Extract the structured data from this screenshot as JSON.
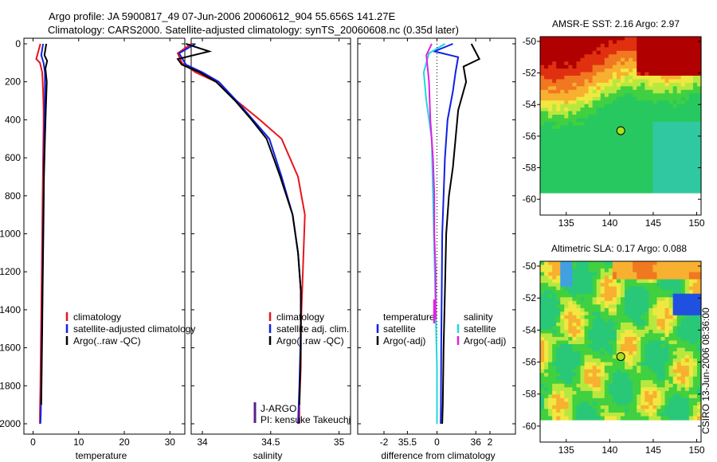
{
  "title": {
    "line1": "Argo profile: JA 5900817_49 07-Jun-2006 20060612_904 55.656S 141.27E",
    "line2": "Climatology: CARS2000. Satellite-adjusted climatology: synTS_20060608.nc (0.35d later)"
  },
  "side_label": "CSIRO 13-Jun-2006 08:36:00",
  "colors": {
    "climatology": "#e8141c",
    "satellite": "#1020e0",
    "argo": "#000000",
    "salinity_satellite": "#20d8e0",
    "salinity_argo": "#e020e0",
    "marker": "#a8e020"
  },
  "chart_data": [
    {
      "type": "line",
      "xlabel": "temperature",
      "xticks": [
        "0",
        "10",
        "20",
        "30"
      ],
      "yticks": [
        "0",
        "200",
        "400",
        "600",
        "800",
        "1000",
        "1200",
        "1400",
        "1600",
        "1800",
        "2000"
      ],
      "xlim": [
        -2,
        32
      ],
      "ylim": [
        2050,
        -10
      ],
      "legend": [
        "climatology",
        "satellite-adjusted climatology",
        "Argo(..raw -QC)"
      ],
      "series": [
        {
          "name": "climatology",
          "color": "#e8141c",
          "x": [
            1.6,
            0.7,
            1.5,
            2.0,
            2.2,
            2.3,
            2.3,
            2.2,
            2.1,
            2.0,
            1.9,
            1.8,
            1.7,
            1.6,
            1.5,
            1.5
          ],
          "y": [
            0,
            80,
            100,
            150,
            250,
            350,
            420,
            600,
            800,
            1000,
            1200,
            1400,
            1600,
            1800,
            1950,
            2000
          ]
        },
        {
          "name": "satellite-adjusted climatology",
          "color": "#1020e0",
          "x": [
            2.2,
            1.8,
            2.3,
            2.6,
            2.6,
            2.5,
            2.4,
            2.3,
            2.2,
            2.1,
            2.0,
            1.9,
            1.8,
            1.7,
            1.6
          ],
          "y": [
            0,
            60,
            100,
            150,
            250,
            400,
            600,
            800,
            1000,
            1200,
            1400,
            1600,
            1800,
            1950,
            2000
          ]
        },
        {
          "name": "Argo(..raw -QC)",
          "color": "#000000",
          "x": [
            2.9,
            2.5,
            3.1,
            2.7,
            3.0,
            2.8,
            2.6,
            2.4,
            2.3,
            2.2,
            2.1,
            2.0,
            1.9,
            1.8
          ],
          "y": [
            0,
            60,
            90,
            130,
            200,
            350,
            500,
            700,
            900,
            1100,
            1300,
            1500,
            1700,
            1900
          ]
        }
      ]
    },
    {
      "type": "line",
      "xlabel": "salinity",
      "xticks": [
        "34",
        "34.5",
        "35",
        "35.5",
        "36"
      ],
      "xlim": [
        33.8,
        36.1
      ],
      "ylim": [
        2050,
        -10
      ],
      "legend": [
        "climatology",
        "satellite adj. clim.",
        "Argo(..raw -QC)"
      ],
      "annotations": [
        "J-ARGO",
        "PI: kensuke Takeuchi"
      ],
      "series": [
        {
          "name": "climatology",
          "color": "#e8141c",
          "x": [
            33.92,
            33.82,
            33.85,
            33.95,
            34.1,
            34.25,
            34.42,
            34.58,
            34.7,
            34.75,
            34.74,
            34.73,
            34.72,
            34.72,
            34.71,
            34.71
          ],
          "y": [
            0,
            50,
            100,
            150,
            200,
            300,
            400,
            500,
            700,
            900,
            1100,
            1300,
            1500,
            1700,
            1900,
            2000
          ]
        },
        {
          "name": "satellite adj. clim.",
          "color": "#1020e0",
          "x": [
            33.95,
            33.83,
            33.88,
            34.0,
            34.12,
            34.25,
            34.37,
            34.49,
            34.58,
            34.66,
            34.7,
            34.72,
            34.72,
            34.71,
            34.7
          ],
          "y": [
            0,
            50,
            110,
            150,
            200,
            300,
            400,
            500,
            700,
            900,
            1100,
            1300,
            1500,
            1800,
            2000
          ]
        },
        {
          "name": "Argo(..raw -QC)",
          "color": "#000000",
          "x": [
            33.88,
            34.05,
            33.82,
            33.85,
            33.98,
            34.1,
            34.24,
            34.36,
            34.47,
            34.57,
            34.66,
            34.7,
            34.72,
            34.72,
            34.71
          ],
          "y": [
            0,
            40,
            80,
            110,
            150,
            200,
            300,
            400,
            500,
            700,
            900,
            1100,
            1300,
            1600,
            1900
          ]
        }
      ]
    },
    {
      "type": "line",
      "xlabel": "difference from climatology",
      "xticks": [
        "-2",
        "0",
        "2"
      ],
      "xlim": [
        -3,
        3
      ],
      "ylim": [
        2050,
        -10
      ],
      "legend_temperature_title": "temperature",
      "legend_salinity_title": "salinity",
      "legend": [
        "satellite",
        "Argo(-adj)",
        "satellite",
        "Argo(-adj)"
      ],
      "series": [
        {
          "name": "temperature satellite",
          "color": "#1020e0",
          "x": [
            0.6,
            -0.1,
            0.8,
            0.7,
            0.6,
            0.4,
            0.3,
            0.25,
            0.2,
            0.18,
            0.16,
            0.15,
            0.14
          ],
          "y": [
            0,
            40,
            70,
            150,
            250,
            400,
            600,
            800,
            1000,
            1300,
            1600,
            1900,
            2000
          ]
        },
        {
          "name": "temperature Argo(-adj)",
          "color": "#000000",
          "x": [
            1.3,
            1.6,
            1.0,
            1.1,
            0.8,
            0.7,
            0.6,
            0.45,
            0.35,
            0.3,
            0.25,
            0.22,
            0.2
          ],
          "y": [
            0,
            80,
            120,
            200,
            350,
            500,
            650,
            800,
            1000,
            1300,
            1600,
            1900,
            2000
          ]
        },
        {
          "name": "salinity satellite",
          "color": "#20d8e0",
          "x": [
            0.3,
            -0.3,
            -0.5,
            -0.4,
            -0.2,
            -0.15,
            -0.1,
            -0.05,
            0.0,
            0.0,
            0.0
          ],
          "y": [
            0,
            50,
            150,
            300,
            500,
            800,
            1100,
            1400,
            1700,
            1900,
            2000
          ]
        },
        {
          "name": "salinity Argo(-adj)",
          "color": "#e020e0",
          "x": [
            -0.2,
            -0.4,
            -0.3,
            -0.25,
            -0.15,
            -0.1,
            -0.1,
            -0.05,
            -0.05
          ],
          "y": [
            0,
            60,
            200,
            400,
            600,
            800,
            1000,
            1200,
            1450
          ]
        }
      ]
    },
    {
      "type": "heatmap",
      "title": "AMSR-E SST: 2.16 Argo: 2.97",
      "xticks": [
        "135",
        "140",
        "145",
        "150"
      ],
      "yticks": [
        "-50",
        "-52",
        "-54",
        "-56",
        "-58",
        "-60"
      ],
      "xlim": [
        132,
        150.5
      ],
      "ylim": [
        -61,
        -49.7
      ],
      "point": {
        "lon": 141.27,
        "lat": -55.656
      }
    },
    {
      "type": "heatmap",
      "title": "Altimetric SLA: 0.17 Argo: 0.088",
      "xticks": [
        "135",
        "140",
        "145",
        "150"
      ],
      "yticks": [
        "-50",
        "-52",
        "-54",
        "-56",
        "-58",
        "-60"
      ],
      "xlim": [
        132,
        150.5
      ],
      "ylim": [
        -61,
        -49.7
      ],
      "point": {
        "lon": 141.27,
        "lat": -55.656
      }
    }
  ]
}
